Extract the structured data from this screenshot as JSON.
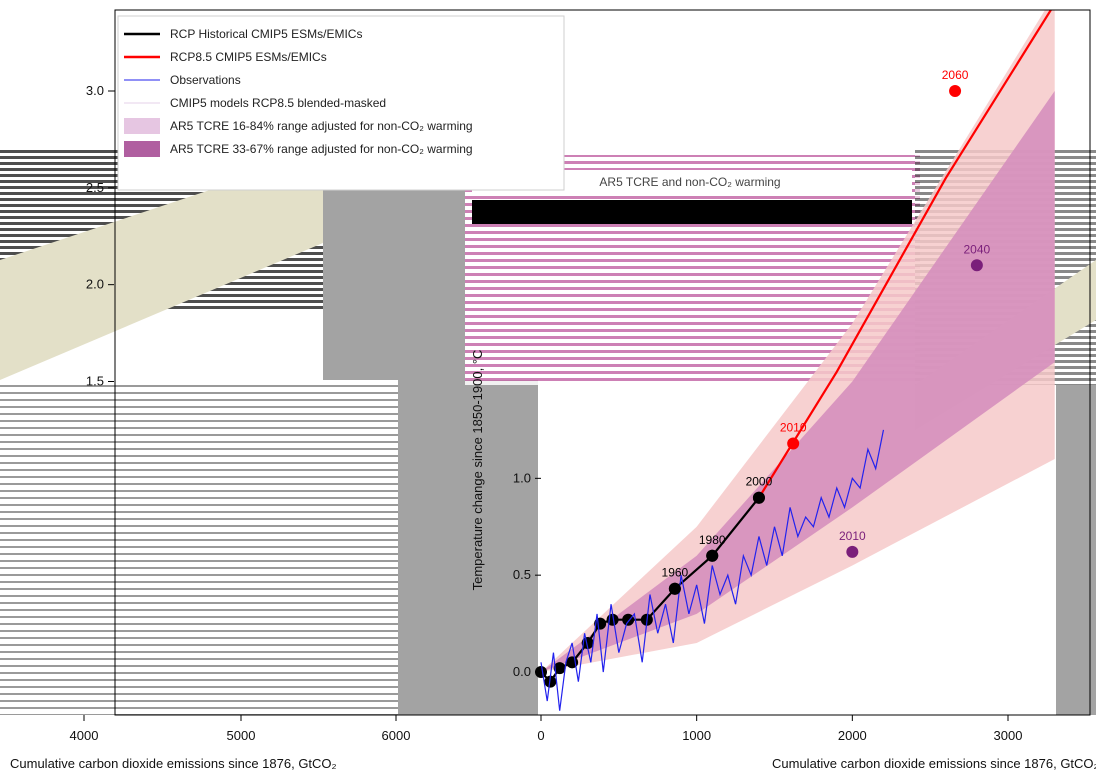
{
  "chart_data": [
    {
      "type": "line",
      "panel": "primary",
      "xlabel": "Cumulative carbon dioxide emissions since 1876, GtCO₂",
      "ylabel": "Temperature change since 1850-1900, °C",
      "xlim": [
        0,
        3300
      ],
      "ylim": [
        -0.2,
        3.5
      ],
      "xticks": [
        0,
        1000,
        2000,
        3000
      ],
      "xtick_labels": [
        "0",
        "1000",
        "2000",
        "3000"
      ],
      "yticks": [
        0.0,
        0.5,
        1.0,
        1.5,
        2.0,
        2.5,
        3.0
      ],
      "ytick_labels": [
        "0.0",
        "0.5",
        "1.0",
        "1.5",
        "2.0",
        "2.5",
        "3.0"
      ],
      "legend": [
        {
          "label": "RCP Historical CMIP5 ESMs/EMICs",
          "color": "#000000",
          "kind": "line-thick"
        },
        {
          "label": "RCP8.5 CMIP5 ESMs/EMICs",
          "color": "#ff0000",
          "kind": "line-thick"
        },
        {
          "label": "Observations",
          "color": "#2222ee",
          "kind": "line-thin"
        },
        {
          "label": "CMIP5 models RCP8.5 blended-masked",
          "color": "#e6d2ea",
          "kind": "line-thin"
        },
        {
          "label": "AR5 TCRE 16-84% range adjusted for non-CO₂ warming",
          "color": "#e6c6e2",
          "kind": "patch"
        },
        {
          "label": "AR5 TCRE 33-67% range adjusted for non-CO₂ warming",
          "color": "#b05fa0",
          "kind": "patch"
        }
      ],
      "legend_position": "upper-left",
      "series": [
        {
          "name": "RCP Historical CMIP5 ESMs/EMICs",
          "color": "#000000",
          "x": [
            0,
            60,
            120,
            200,
            300,
            380,
            460,
            560,
            680,
            860,
            1100,
            1400
          ],
          "y": [
            0.0,
            -0.05,
            0.02,
            0.05,
            0.15,
            0.25,
            0.27,
            0.27,
            0.27,
            0.43,
            0.6,
            0.9
          ]
        },
        {
          "name": "RCP8.5 CMIP5 ESMs/EMICs",
          "color": "#ff0000",
          "x": [
            1400,
            1900,
            2600,
            3300
          ],
          "y": [
            0.9,
            1.55,
            2.55,
            3.45
          ]
        },
        {
          "name": "Observations",
          "color": "#2222ee",
          "x": [
            0,
            40,
            80,
            120,
            160,
            200,
            240,
            280,
            320,
            360,
            400,
            450,
            500,
            550,
            600,
            650,
            700,
            750,
            800,
            850,
            900,
            950,
            1000,
            1050,
            1100,
            1150,
            1200,
            1250,
            1300,
            1350,
            1400,
            1450,
            1500,
            1550,
            1600,
            1650,
            1700,
            1750,
            1800,
            1850,
            1900,
            1950,
            2000,
            2050,
            2100,
            2150,
            2200
          ],
          "y": [
            0.05,
            -0.15,
            0.1,
            -0.2,
            0.05,
            0.15,
            -0.05,
            0.2,
            0.05,
            0.3,
            0.0,
            0.35,
            0.1,
            0.25,
            0.3,
            0.05,
            0.4,
            0.2,
            0.35,
            0.15,
            0.5,
            0.3,
            0.45,
            0.25,
            0.55,
            0.4,
            0.5,
            0.35,
            0.6,
            0.5,
            0.7,
            0.55,
            0.75,
            0.6,
            0.85,
            0.7,
            0.8,
            0.75,
            0.9,
            0.8,
            0.95,
            0.85,
            1.0,
            0.95,
            1.15,
            1.05,
            1.25
          ]
        }
      ],
      "bands": [
        {
          "name": "16-84%",
          "color": "#f6c9c9",
          "x": [
            0,
            1000,
            2000,
            3300
          ],
          "lower": [
            0.0,
            0.15,
            0.55,
            1.1
          ],
          "upper": [
            0.0,
            0.75,
            1.8,
            3.5
          ]
        },
        {
          "name": "33-67%",
          "color": "#d58fbd",
          "x": [
            0,
            1000,
            2000,
            3300
          ],
          "lower": [
            0.0,
            0.3,
            0.85,
            1.6
          ],
          "upper": [
            0.0,
            0.6,
            1.5,
            3.0
          ]
        }
      ],
      "year_markers": [
        {
          "label": "1960",
          "x": 860,
          "y": 0.43,
          "color": "#000000"
        },
        {
          "label": "1980",
          "x": 1100,
          "y": 0.6,
          "color": "#000000"
        },
        {
          "label": "2000",
          "x": 1400,
          "y": 0.9,
          "color": "#000000"
        },
        {
          "label": "2010",
          "x": 1620,
          "y": 1.18,
          "color": "#ff0000"
        },
        {
          "label": "2060",
          "x": 2660,
          "y": 3.0,
          "color": "#ff0000"
        },
        {
          "label": "2040",
          "x": 2800,
          "y": 2.1,
          "color": "#7a1f7a"
        },
        {
          "label": "2010",
          "x": 2000,
          "y": 0.62,
          "color": "#7a1f7a"
        }
      ],
      "annotation": "AR5 TCRE and non-CO₂ warming"
    },
    {
      "type": "line",
      "panel": "left-fragment",
      "xticks": [
        4000,
        5000,
        6000
      ],
      "xtick_labels": [
        "4000",
        "5000",
        "6000"
      ]
    }
  ]
}
